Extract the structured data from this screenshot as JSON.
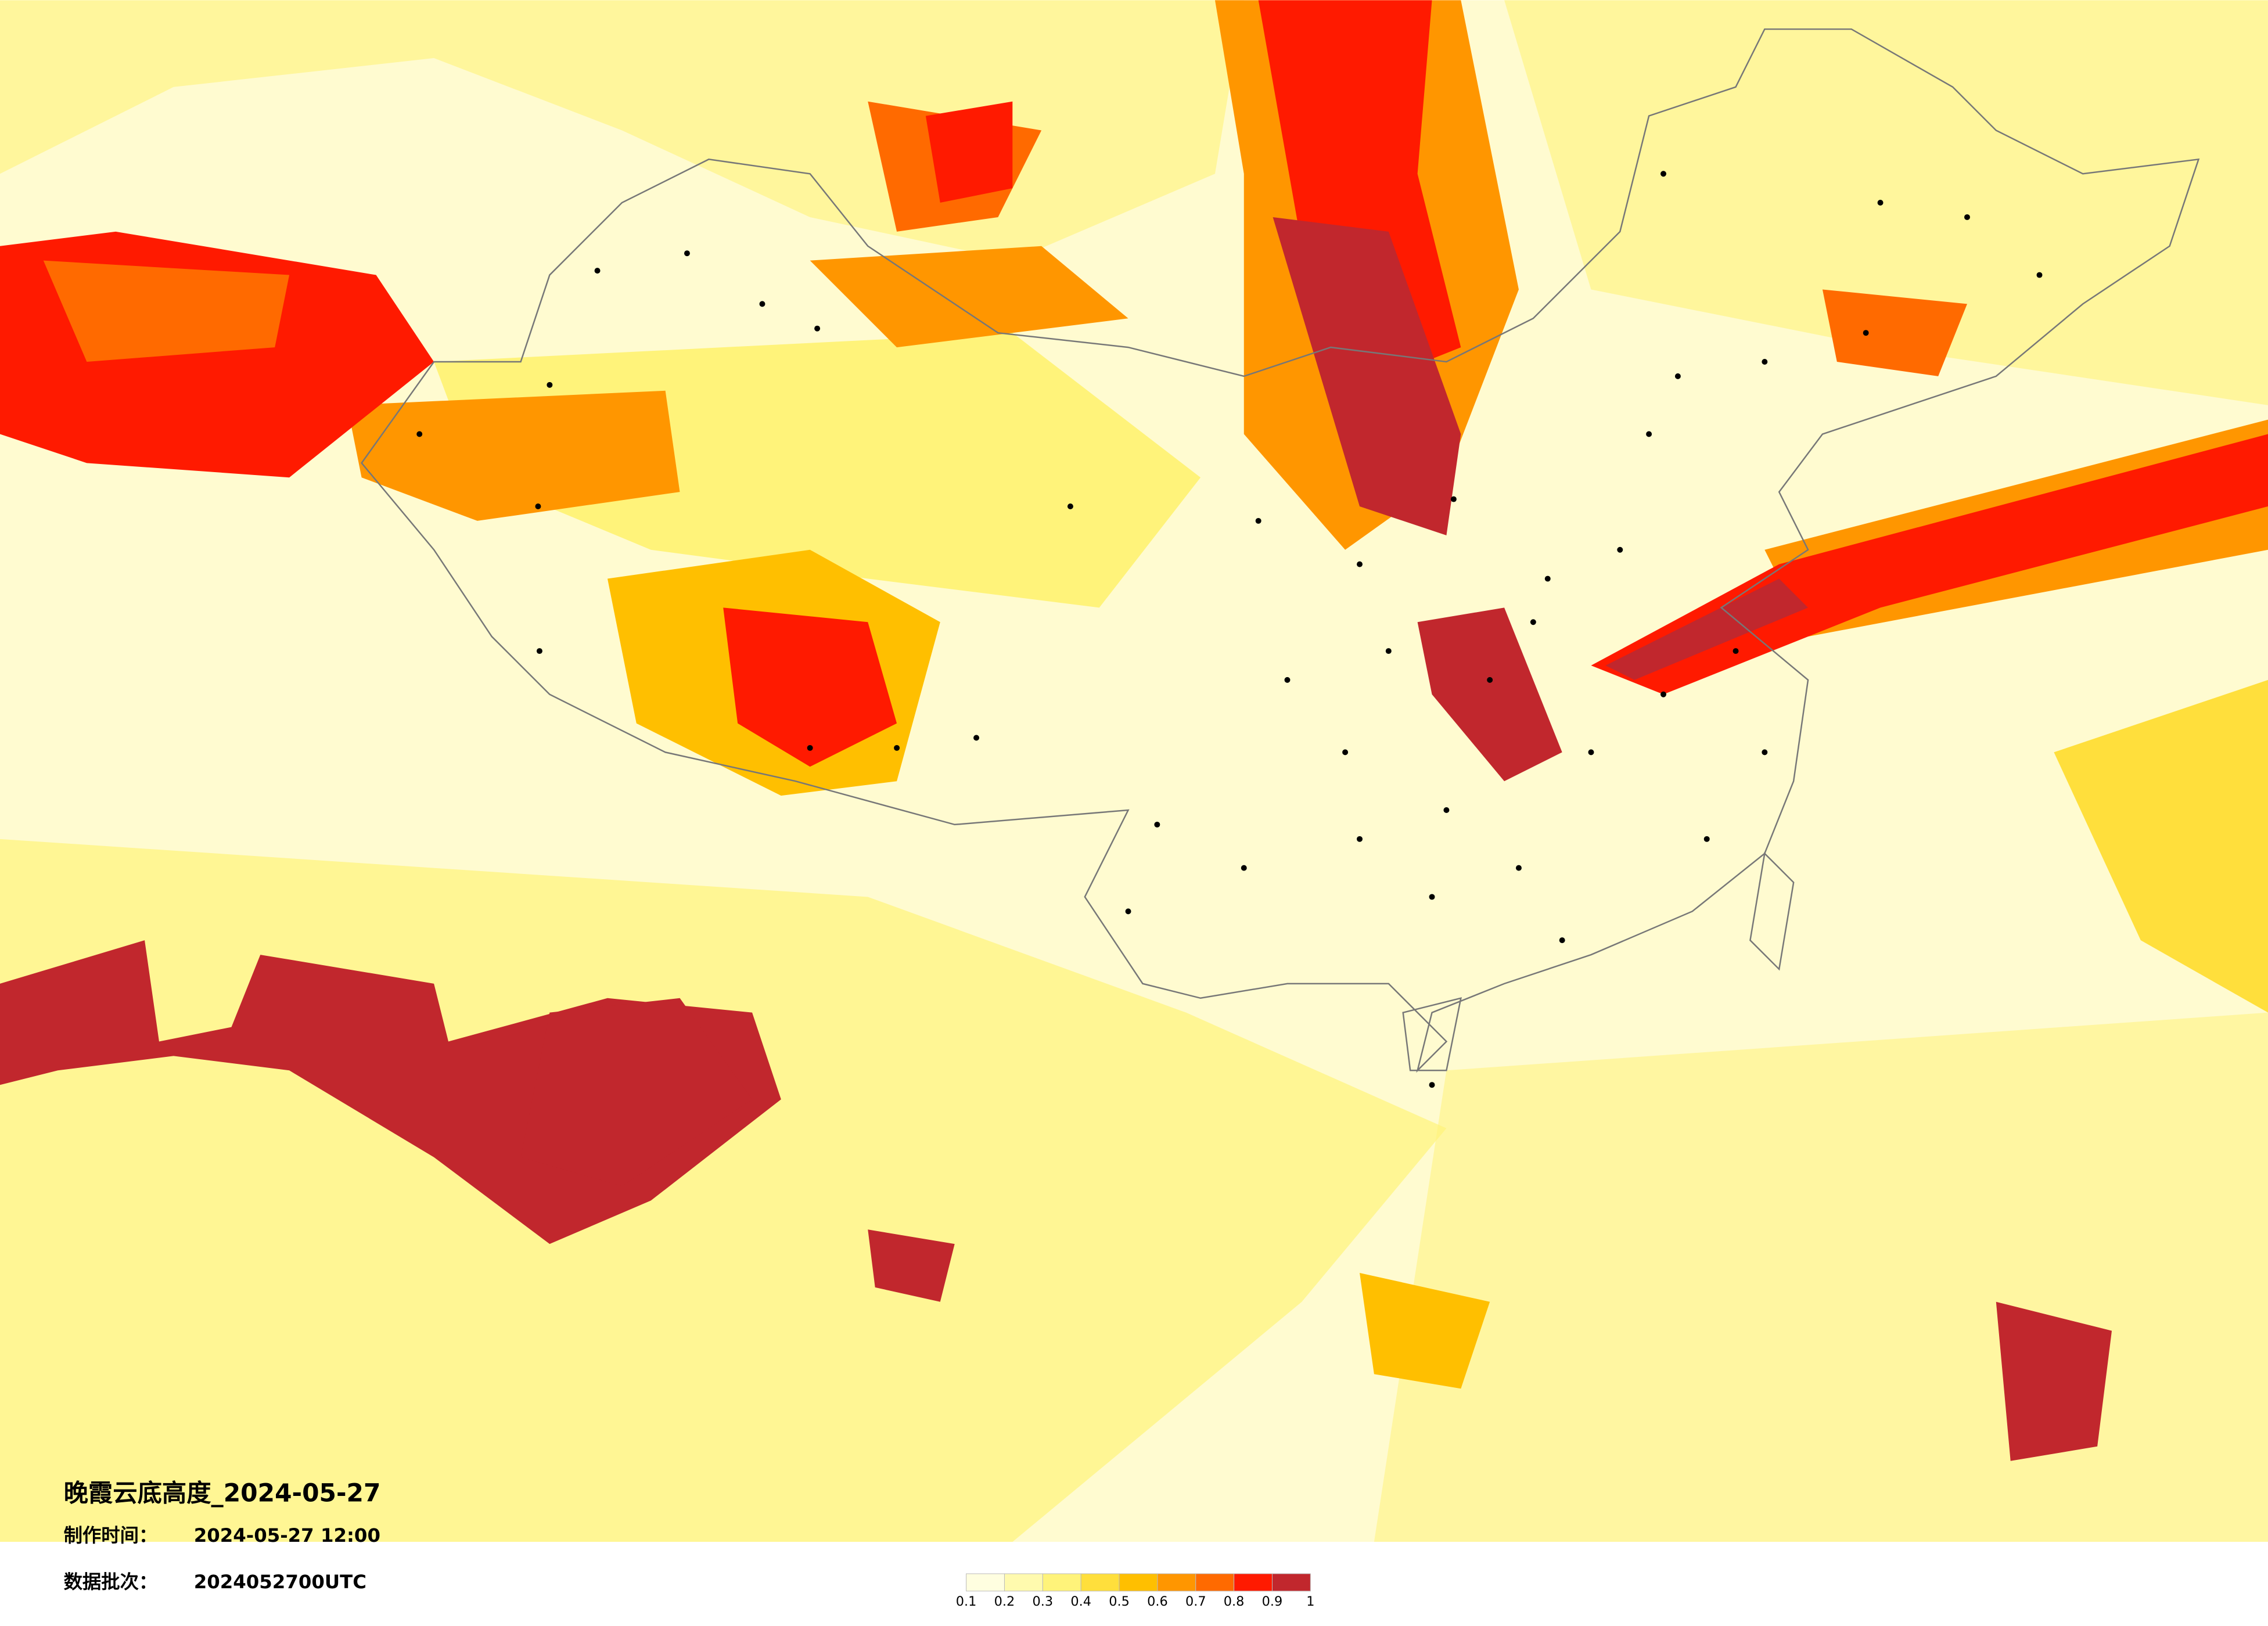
{
  "title": "晚霞云底高度_2024-05-27",
  "made_time_label": "制作时间：",
  "made_time": "2024-05-27 12:00",
  "batch_label": "数据批次：",
  "batch": "2024052700UTC",
  "colorbar": {
    "colors": [
      "#fffee0",
      "#fffaae",
      "#fff37a",
      "#ffdf3c",
      "#ffbf00",
      "#ff9600",
      "#ff6a00",
      "#ff1a00",
      "#c1272d"
    ],
    "ticks": [
      0.1,
      0.2,
      0.3,
      0.4,
      0.5,
      0.6,
      0.7,
      0.8,
      0.9,
      1
    ]
  }
}
